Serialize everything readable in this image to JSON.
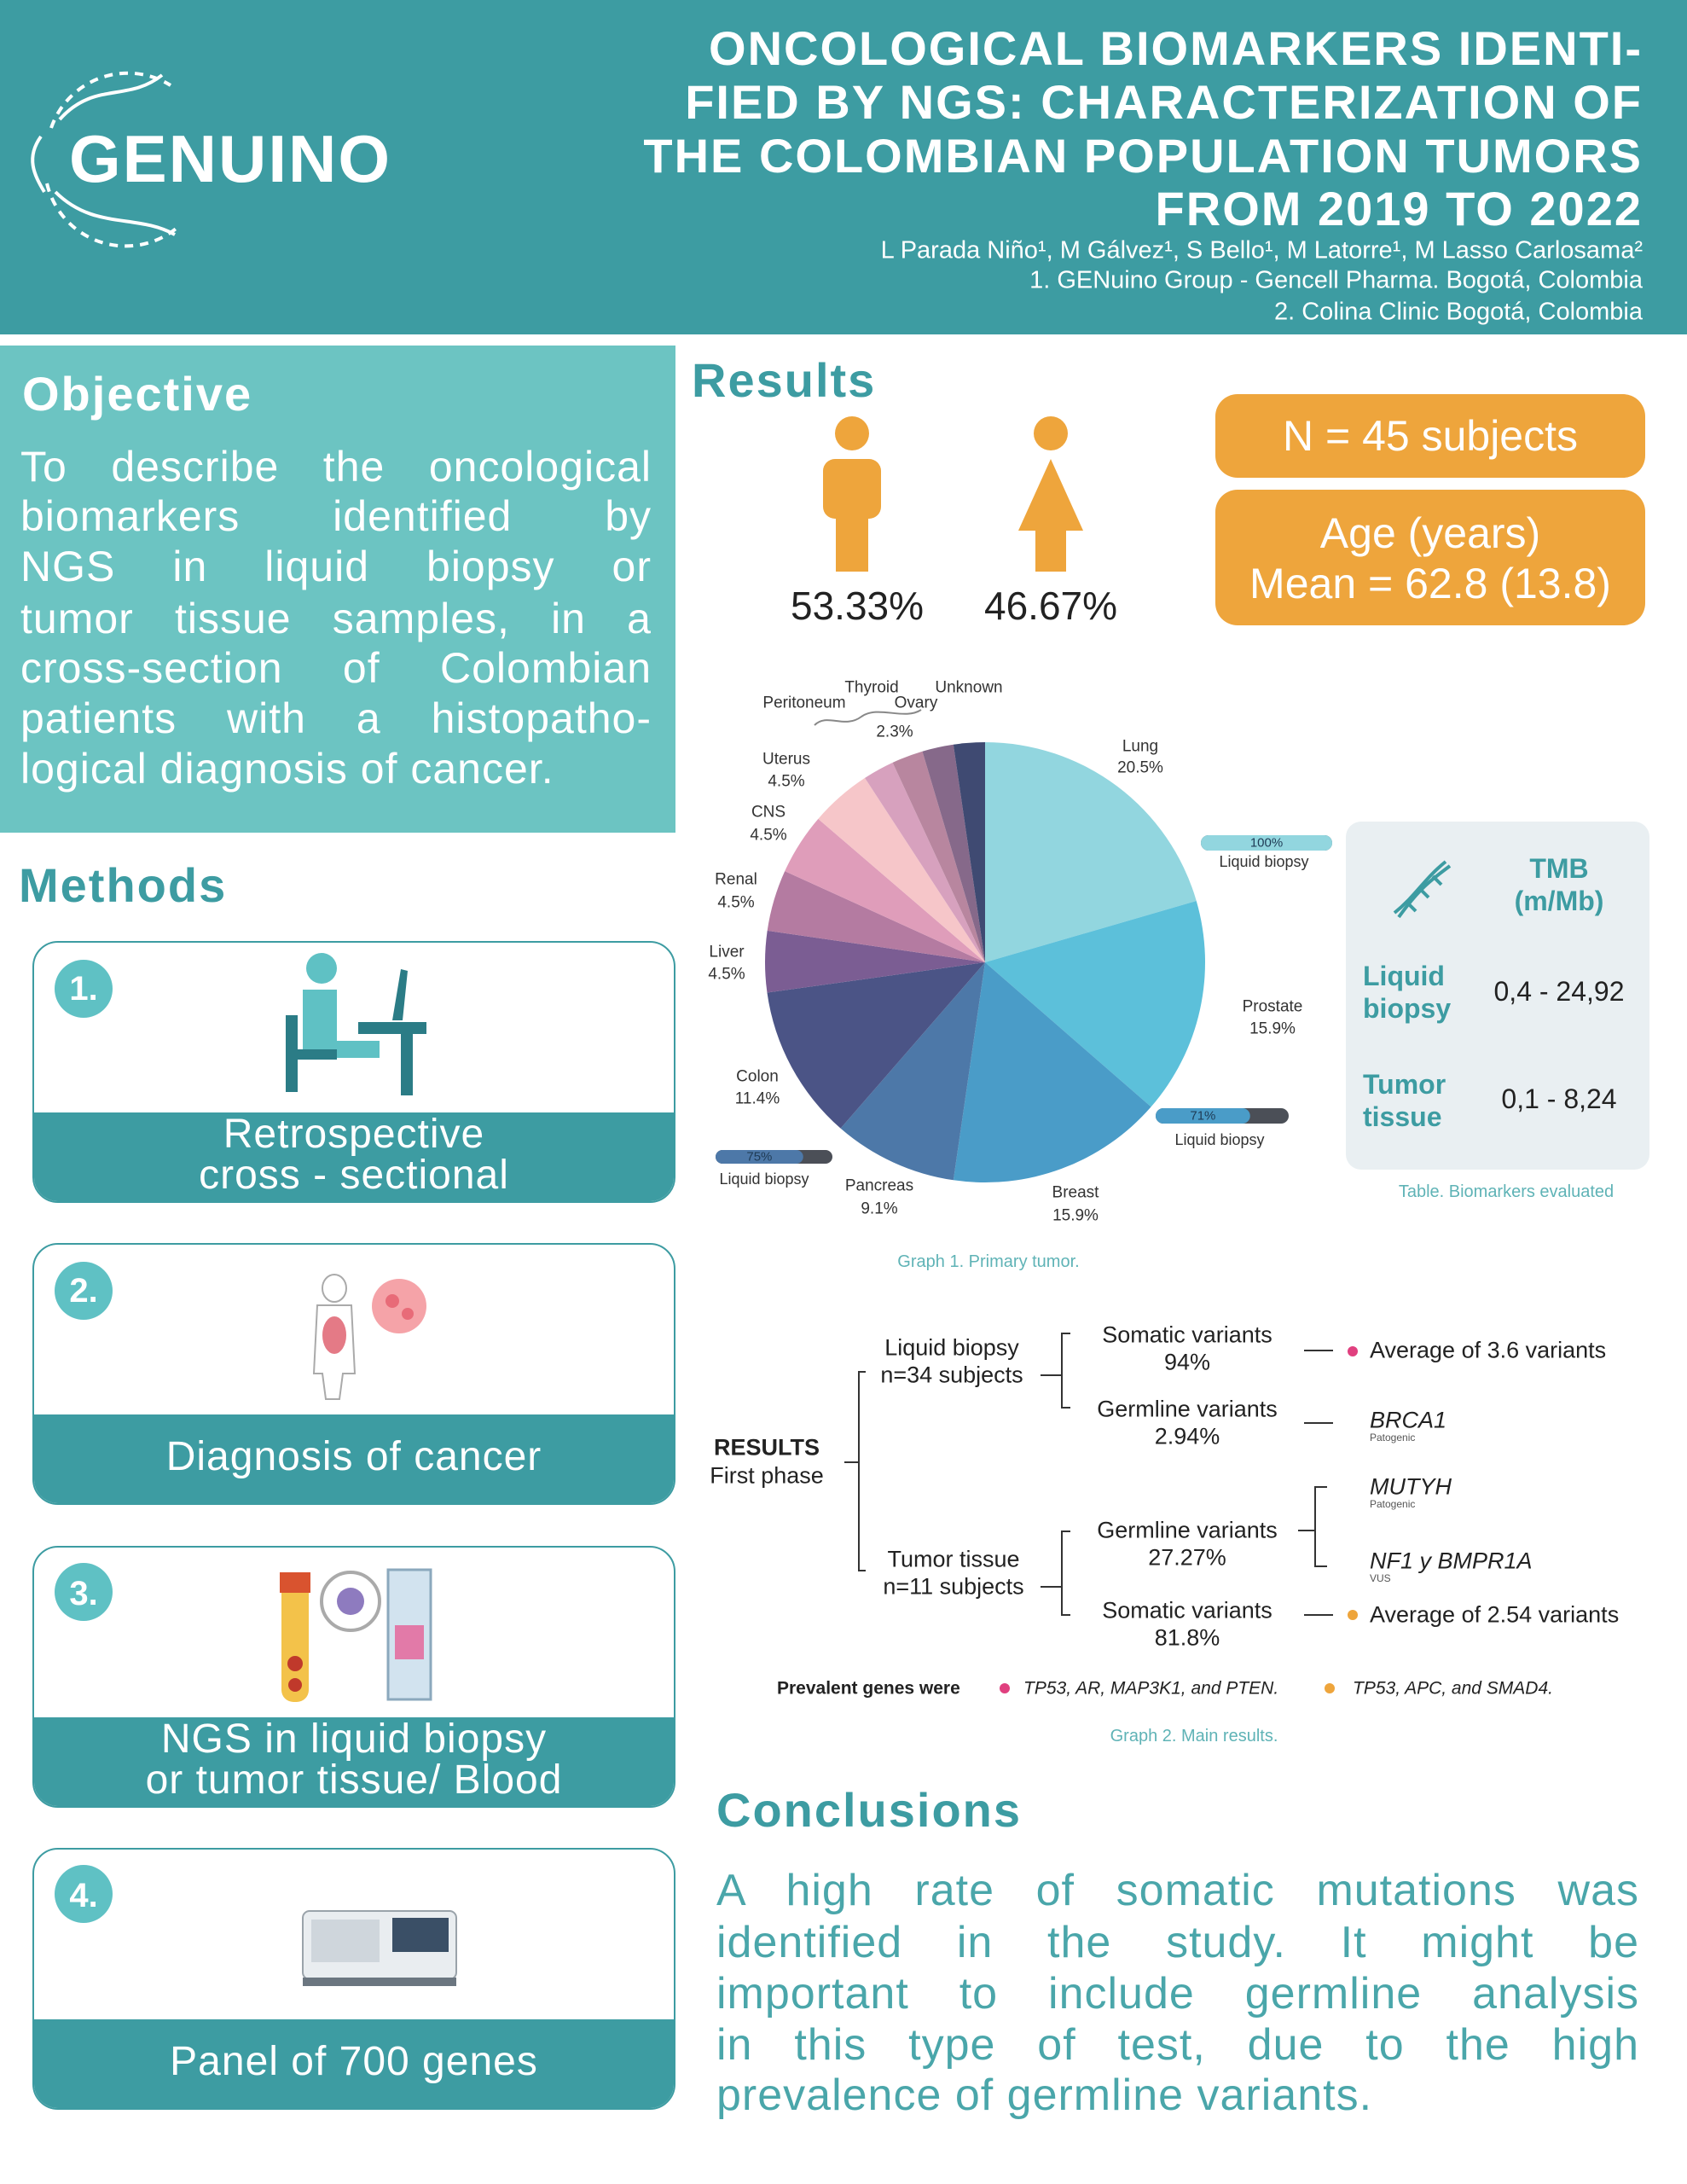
{
  "header": {
    "logo": "GENUINO",
    "title_lines": [
      "ONCOLOGICAL BIOMARKERS IDENTI-",
      "FIED BY NGS: CHARACTERIZATION OF",
      "THE COLOMBIAN POPULATION TUMORS",
      "FROM 2019 TO 2022"
    ],
    "authors": "L Parada Niño¹, M Gálvez¹, S Bello¹, M Latorre¹, M Lasso Carlosama²",
    "affiliations": [
      "1. GENuino Group - Gencell Pharma. Bogotá, Colombia",
      "2. Colina Clinic Bogotá, Colombia"
    ]
  },
  "objective": {
    "heading": "Objective",
    "lines": [
      "To describe the oncological",
      "biomarkers identified by",
      "NGS in liquid biopsy or",
      "tumor tissue samples, in a",
      "cross-section of Colombian",
      "patients with a histopatho-",
      "logical diagnosis of cancer."
    ]
  },
  "methods": {
    "heading": "Methods",
    "steps": [
      {
        "number": "1.",
        "label": [
          "Retrospective",
          "cross - sectional"
        ]
      },
      {
        "number": "2.",
        "label": [
          "Diagnosis of cancer"
        ]
      },
      {
        "number": "3.",
        "label": [
          "NGS in liquid biopsy",
          "or tumor tissue/ Blood"
        ]
      },
      {
        "number": "4.",
        "label": [
          "Panel of 700 genes"
        ]
      }
    ]
  },
  "results": {
    "heading": "Results",
    "gender": [
      "53.33%",
      "46.67%"
    ],
    "n": "N = 45 subjects",
    "age": [
      "Age (years)",
      "Mean = 62.8 (13.8)"
    ]
  },
  "chart_data": {
    "type": "pie",
    "caption": "Graph 1. Primary tumor.",
    "categories": [
      "Lung",
      "Prostate",
      "Breast",
      "Pancreas",
      "Colon",
      "Liver",
      "Renal",
      "CNS",
      "Uterus",
      "Peritoneum",
      "Thyroid",
      "Ovary",
      "Unknown"
    ],
    "values": [
      20.5,
      15.9,
      15.9,
      9.1,
      11.4,
      4.5,
      4.5,
      4.5,
      4.5,
      2.3,
      2.3,
      2.3,
      2.3
    ],
    "value_labels": [
      "20.5%",
      "15.9%",
      "15.9%",
      "9.1%",
      "11.4%",
      "4.5%",
      "4.5%",
      "4.5%",
      "4.5%",
      "2.3%",
      null,
      null,
      null
    ],
    "colors": [
      "#92d6df",
      "#5cc0da",
      "#4a9cc8",
      "#4d78a8",
      "#4b5486",
      "#7b5d93",
      "#b47ba1",
      "#df9dba",
      "#f6c6c9",
      "#d7a1be",
      "#b8869f",
      "#86698a",
      "#3f4a72"
    ],
    "liquid_biopsy_bars": {
      "label": "Liquid biopsy",
      "values": [
        100,
        71,
        75
      ],
      "value_labels": [
        "100%",
        "71%",
        "75%"
      ],
      "xlim": [
        0,
        100
      ]
    }
  },
  "tmb_table": {
    "header": [
      "TMB",
      "(m/Mb)"
    ],
    "rows": [
      [
        "Liquid biopsy",
        "0,4 - 24,92"
      ],
      [
        "Tumor tissue",
        "0,1 - 8,24"
      ]
    ],
    "caption": "Table. Biomarkers evaluated"
  },
  "tree": {
    "root": [
      "RESULTS",
      "First phase"
    ],
    "branches": [
      {
        "label": [
          "Liquid biopsy",
          "n=34 subjects"
        ],
        "items": [
          {
            "label": [
              "Somatic variants",
              "94%"
            ],
            "details": [
              {
                "text": "Average of 3.6 variants"
              }
            ]
          },
          {
            "label": [
              "Germline variants",
              "2.94%"
            ],
            "details": [
              {
                "text": "BRCA1",
                "note": "Patogenic"
              }
            ]
          }
        ]
      },
      {
        "label": [
          "Tumor tissue",
          "n=11 subjects"
        ],
        "items": [
          {
            "label": [
              "Germline variants",
              "27.27%"
            ],
            "details": [
              {
                "text": "MUTYH",
                "note": "Patogenic"
              },
              {
                "text": "NF1 y BMPR1A",
                "note": "VUS"
              }
            ]
          },
          {
            "label": [
              "Somatic variants",
              "81.8%"
            ],
            "details": [
              {
                "text": "Average of 2.54 variants"
              }
            ]
          }
        ]
      }
    ],
    "prevalent": {
      "label": "Prevalent genes were",
      "groups": [
        "TP53, AR, MAP3K1, and PTEN.",
        "TP53, APC, and SMAD4."
      ]
    },
    "caption": "Graph 2. Main results."
  },
  "conclusions": {
    "heading": "Conclusions",
    "lines": [
      "A high rate of somatic mutations was",
      "identified in the study. It might be",
      "important to include germline analysis",
      "in this type of test, due to the high",
      "prevalence of germline variants."
    ]
  }
}
